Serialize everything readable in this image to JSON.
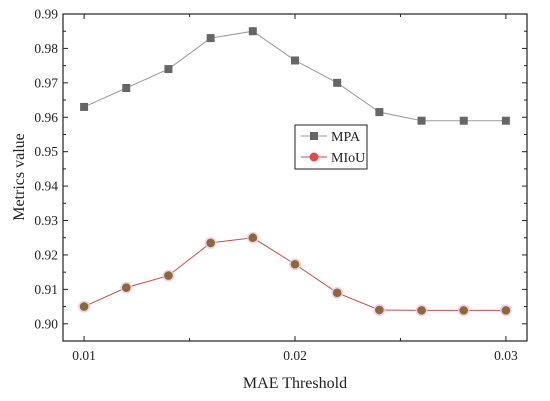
{
  "chart_data": {
    "type": "line",
    "title": "",
    "xlabel": "MAE Threshold",
    "ylabel": "Metrics value",
    "xlim": [
      0.009,
      0.031
    ],
    "ylim": [
      0.895,
      0.99
    ],
    "x_ticks": [
      0.01,
      0.02,
      0.03
    ],
    "x_tick_labels": [
      "0.01",
      "0.02",
      "0.03"
    ],
    "y_ticks": [
      0.9,
      0.91,
      0.92,
      0.93,
      0.94,
      0.95,
      0.96,
      0.97,
      0.98,
      0.99
    ],
    "y_tick_labels": [
      "0.90",
      "0.91",
      "0.92",
      "0.93",
      "0.94",
      "0.95",
      "0.96",
      "0.97",
      "0.98",
      "0.99"
    ],
    "grid": false,
    "legend_position": "center-right",
    "x": [
      0.01,
      0.012,
      0.014,
      0.016,
      0.018,
      0.02,
      0.022,
      0.024,
      0.026,
      0.028,
      0.03
    ],
    "series": [
      {
        "name": "MPA",
        "marker": "square",
        "color": "#666666",
        "line_color": "#9a9a9a",
        "values": [
          0.963,
          0.9685,
          0.974,
          0.983,
          0.985,
          0.9765,
          0.97,
          0.9615,
          0.959,
          0.959,
          0.959
        ]
      },
      {
        "name": "MIoU",
        "marker": "circle",
        "color": "#e8473f",
        "line_color": "#c0504d",
        "values": [
          0.905,
          0.9105,
          0.914,
          0.9235,
          0.925,
          0.9173,
          0.909,
          0.904,
          0.9039,
          0.9039,
          0.9039
        ]
      }
    ]
  }
}
